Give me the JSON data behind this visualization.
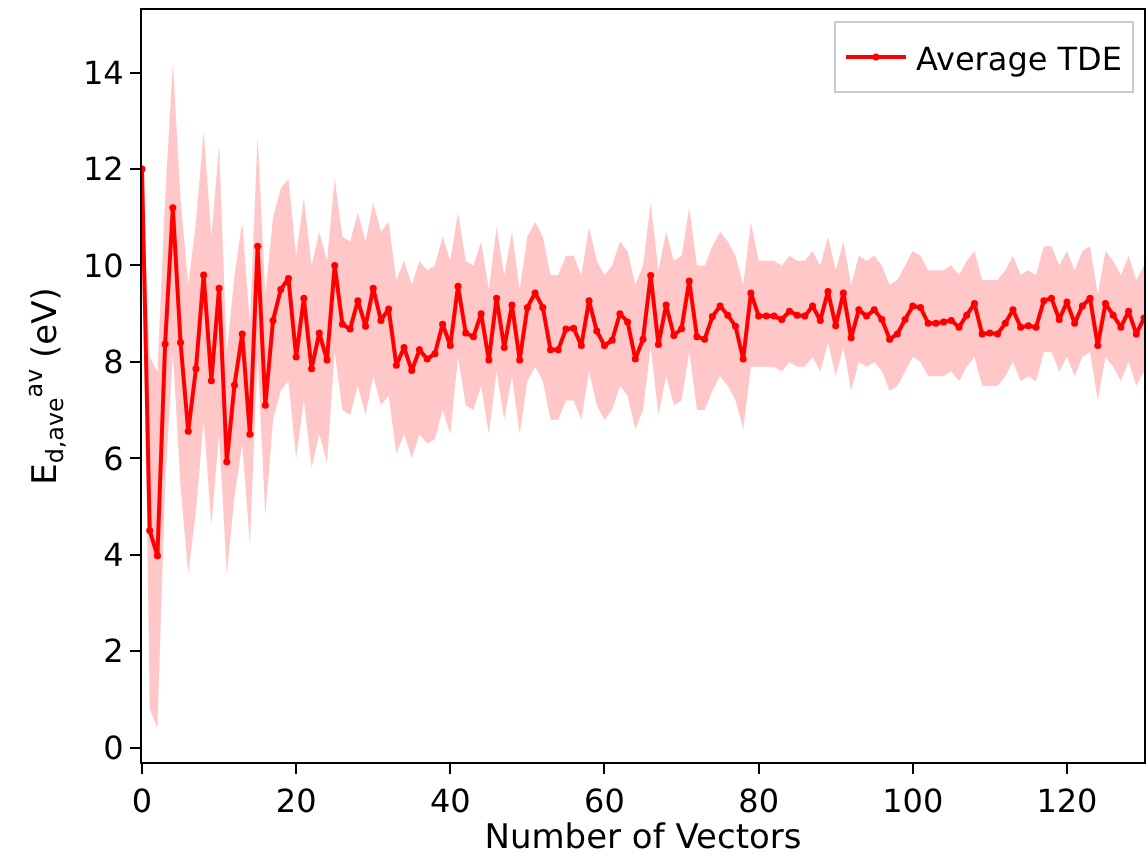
{
  "chart_data": {
    "type": "line",
    "xlabel": "Number of Vectors",
    "ylabel": "E$_{d,ave}$$^{av}$ (eV)",
    "x": [
      0,
      1,
      2,
      3,
      4,
      5,
      6,
      7,
      8,
      9,
      10,
      11,
      12,
      13,
      14,
      15,
      16,
      17,
      18,
      19,
      20,
      21,
      22,
      23,
      24,
      25,
      26,
      27,
      28,
      29,
      30,
      31,
      32,
      33,
      34,
      35,
      36,
      37,
      38,
      39,
      40,
      41,
      42,
      43,
      44,
      45,
      46,
      47,
      48,
      49,
      50,
      51,
      52,
      53,
      54,
      55,
      56,
      57,
      58,
      59,
      60,
      61,
      62,
      63,
      64,
      65,
      66,
      67,
      68,
      69,
      70,
      71,
      72,
      73,
      74,
      75,
      76,
      77,
      78,
      79,
      80,
      81,
      82,
      83,
      84,
      85,
      86,
      87,
      88,
      89,
      90,
      91,
      92,
      93,
      94,
      95,
      96,
      97,
      98,
      99,
      100,
      101,
      102,
      103,
      104,
      105,
      106,
      107,
      108,
      109,
      110,
      111,
      112,
      113,
      114,
      115,
      116,
      117,
      118,
      119,
      120,
      121,
      122,
      123,
      124,
      125,
      126,
      127,
      128,
      129,
      130
    ],
    "series": [
      {
        "name": "Average TDE",
        "color": "#ff0000",
        "values": [
          12.0,
          4.5,
          3.98,
          8.37,
          11.2,
          8.4,
          6.56,
          7.86,
          9.8,
          7.61,
          9.53,
          5.93,
          7.52,
          8.58,
          6.5,
          10.4,
          7.1,
          8.86,
          9.5,
          9.73,
          8.1,
          9.32,
          7.86,
          8.6,
          8.04,
          10.0,
          8.78,
          8.68,
          9.27,
          8.74,
          9.53,
          8.86,
          9.1,
          7.93,
          8.3,
          7.82,
          8.25,
          8.06,
          8.17,
          8.78,
          8.34,
          9.57,
          8.6,
          8.52,
          9.0,
          8.04,
          9.32,
          8.3,
          9.18,
          8.04,
          9.13,
          9.43,
          9.13,
          8.25,
          8.25,
          8.68,
          8.7,
          8.34,
          9.27,
          8.64,
          8.34,
          8.45,
          9.0,
          8.83,
          8.06,
          8.47,
          9.79,
          8.36,
          9.18,
          8.55,
          8.69,
          9.68,
          8.52,
          8.47,
          8.94,
          9.16,
          8.97,
          8.74,
          8.06,
          9.43,
          8.95,
          8.95,
          8.95,
          8.88,
          9.05,
          8.97,
          8.95,
          9.16,
          8.86,
          9.46,
          8.75,
          9.43,
          8.5,
          9.08,
          8.95,
          9.08,
          8.88,
          8.47,
          8.58,
          8.88,
          9.16,
          9.13,
          8.8,
          8.8,
          8.83,
          8.86,
          8.72,
          8.97,
          9.21,
          8.58,
          8.6,
          8.58,
          8.8,
          9.08,
          8.72,
          8.75,
          8.72,
          9.27,
          9.32,
          8.88,
          9.24,
          8.8,
          9.16,
          9.32,
          8.34,
          9.21,
          8.97,
          8.72,
          9.05,
          8.58,
          8.91
        ],
        "upper": [
          12.0,
          8.1,
          7.8,
          11.4,
          14.2,
          11.4,
          9.6,
          10.9,
          12.8,
          10.6,
          12.5,
          8.2,
          9.8,
          10.9,
          8.8,
          12.7,
          9.4,
          11.0,
          11.6,
          11.8,
          10.2,
          11.4,
          10.0,
          10.7,
          10.1,
          11.8,
          10.6,
          10.5,
          11.1,
          10.5,
          11.3,
          10.7,
          10.9,
          9.7,
          10.1,
          9.6,
          10.1,
          9.9,
          10.0,
          10.6,
          10.1,
          11.1,
          10.1,
          10.0,
          10.5,
          9.5,
          10.8,
          9.8,
          10.7,
          9.5,
          10.6,
          10.9,
          10.6,
          9.8,
          9.8,
          10.2,
          10.2,
          9.8,
          10.8,
          10.1,
          9.8,
          10.0,
          10.5,
          10.3,
          9.6,
          10.0,
          11.3,
          9.9,
          10.7,
          10.1,
          10.2,
          11.2,
          10.0,
          10.0,
          10.4,
          10.7,
          10.5,
          10.2,
          9.6,
          10.9,
          10.1,
          10.1,
          10.1,
          10.0,
          10.2,
          10.1,
          10.1,
          10.3,
          10.0,
          10.6,
          9.9,
          10.5,
          9.6,
          10.2,
          10.1,
          10.2,
          10.0,
          9.6,
          9.7,
          10.0,
          10.3,
          10.2,
          9.9,
          9.9,
          9.9,
          10.0,
          9.8,
          10.1,
          10.3,
          9.7,
          9.7,
          9.7,
          9.9,
          10.2,
          9.8,
          9.9,
          9.8,
          10.4,
          10.4,
          10.0,
          10.3,
          9.9,
          10.3,
          10.4,
          9.4,
          10.3,
          10.1,
          9.8,
          10.2,
          9.7,
          10.0
        ],
        "lower": [
          12.0,
          0.8,
          0.4,
          5.4,
          8.2,
          5.4,
          3.6,
          4.9,
          6.8,
          4.6,
          6.5,
          3.6,
          5.2,
          6.3,
          4.2,
          8.1,
          4.8,
          6.8,
          7.4,
          7.6,
          6.0,
          7.2,
          5.8,
          6.5,
          5.9,
          8.2,
          7.0,
          6.9,
          7.5,
          6.9,
          7.7,
          7.1,
          7.3,
          6.1,
          6.5,
          6.0,
          6.5,
          6.3,
          6.4,
          7.0,
          6.5,
          8.1,
          7.1,
          7.0,
          7.5,
          6.5,
          7.8,
          6.8,
          7.7,
          6.5,
          7.6,
          7.9,
          7.6,
          6.8,
          6.8,
          7.2,
          7.2,
          6.8,
          7.8,
          7.1,
          6.8,
          7.0,
          7.5,
          7.3,
          6.6,
          7.0,
          8.3,
          6.9,
          7.7,
          7.1,
          7.2,
          8.2,
          7.0,
          7.0,
          7.4,
          7.7,
          7.5,
          7.2,
          6.6,
          7.9,
          7.9,
          7.9,
          7.9,
          7.8,
          8.0,
          7.9,
          7.9,
          8.1,
          7.8,
          8.4,
          7.7,
          8.3,
          7.4,
          8.0,
          7.9,
          8.0,
          7.8,
          7.4,
          7.5,
          7.8,
          8.1,
          8.0,
          7.7,
          7.7,
          7.7,
          7.8,
          7.6,
          7.9,
          8.1,
          7.5,
          7.5,
          7.5,
          7.7,
          8.0,
          7.6,
          7.7,
          7.6,
          8.2,
          8.2,
          7.8,
          8.1,
          7.7,
          8.1,
          8.2,
          7.2,
          8.1,
          7.9,
          7.6,
          8.0,
          7.5,
          7.8
        ]
      }
    ],
    "xlim": [
      0,
      130
    ],
    "ylim": [
      -0.3,
      15.3
    ],
    "xticks": [
      0,
      20,
      40,
      60,
      80,
      100,
      120
    ],
    "yticks": [
      0,
      2,
      4,
      6,
      8,
      10,
      12,
      14
    ],
    "marker": "circle",
    "line_style": "solid",
    "legend": "top right"
  }
}
